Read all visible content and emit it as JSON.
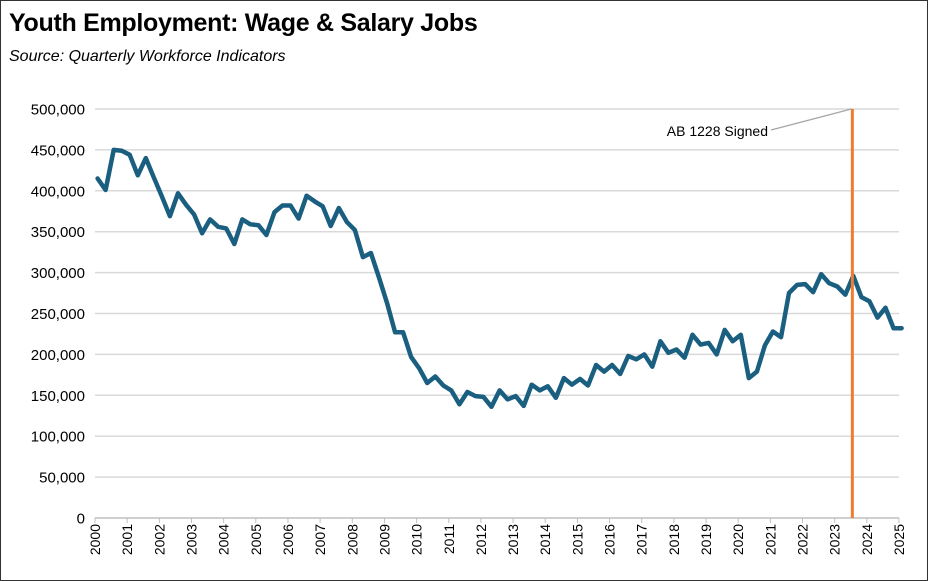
{
  "chart_data": {
    "type": "line",
    "title": "Youth Employment:  Wage & Salary Jobs",
    "subtitle": "Source:  Quarterly Workforce Indicators",
    "xlabel": "",
    "ylabel": "",
    "ylim": [
      0,
      500000
    ],
    "xlim": [
      2000,
      2025
    ],
    "grid": true,
    "y_ticks": [
      "0",
      "50,000",
      "100,000",
      "150,000",
      "200,000",
      "250,000",
      "300,000",
      "350,000",
      "400,000",
      "450,000",
      "500,000"
    ],
    "x_ticks": [
      "2000",
      "2001",
      "2002",
      "2003",
      "2004",
      "2005",
      "2006",
      "2007",
      "2008",
      "2009",
      "2010",
      "2011",
      "2012",
      "2013",
      "2014",
      "2015",
      "2016",
      "2017",
      "2018",
      "2019",
      "2020",
      "2021",
      "2022",
      "2023",
      "2024",
      "2025"
    ],
    "series": [
      {
        "name": "Youth Wage & Salary Jobs",
        "color": "#1a5e80",
        "x_start": 2000.08,
        "x_step": 0.25,
        "values": [
          415000,
          401000,
          450000,
          449000,
          444000,
          419000,
          440000,
          416000,
          393000,
          369000,
          397000,
          383000,
          371000,
          348000,
          365000,
          356000,
          354000,
          335000,
          365000,
          359000,
          358000,
          346000,
          374000,
          382000,
          382000,
          366000,
          394000,
          387000,
          381000,
          357000,
          379000,
          362000,
          352000,
          319000,
          324000,
          294000,
          263000,
          227000,
          227000,
          197000,
          183000,
          165000,
          173000,
          162000,
          156000,
          139000,
          154000,
          149000,
          148000,
          136000,
          156000,
          145000,
          149000,
          137000,
          163000,
          156000,
          161000,
          147000,
          171000,
          163000,
          170000,
          162000,
          187000,
          179000,
          187000,
          176000,
          198000,
          194000,
          200000,
          185000,
          216000,
          202000,
          206000,
          196000,
          224000,
          212000,
          214000,
          200000,
          230000,
          216000,
          224000,
          171000,
          179000,
          211000,
          228000,
          221000,
          275000,
          285000,
          286000,
          276000,
          298000,
          287000,
          283000,
          273000,
          296000,
          270000,
          265000,
          245000,
          257000,
          232000,
          232000
        ]
      }
    ],
    "annotations": [
      {
        "text": "AB 1228 Signed",
        "x": 2023.55,
        "line_color": "#ed7d31"
      }
    ]
  }
}
